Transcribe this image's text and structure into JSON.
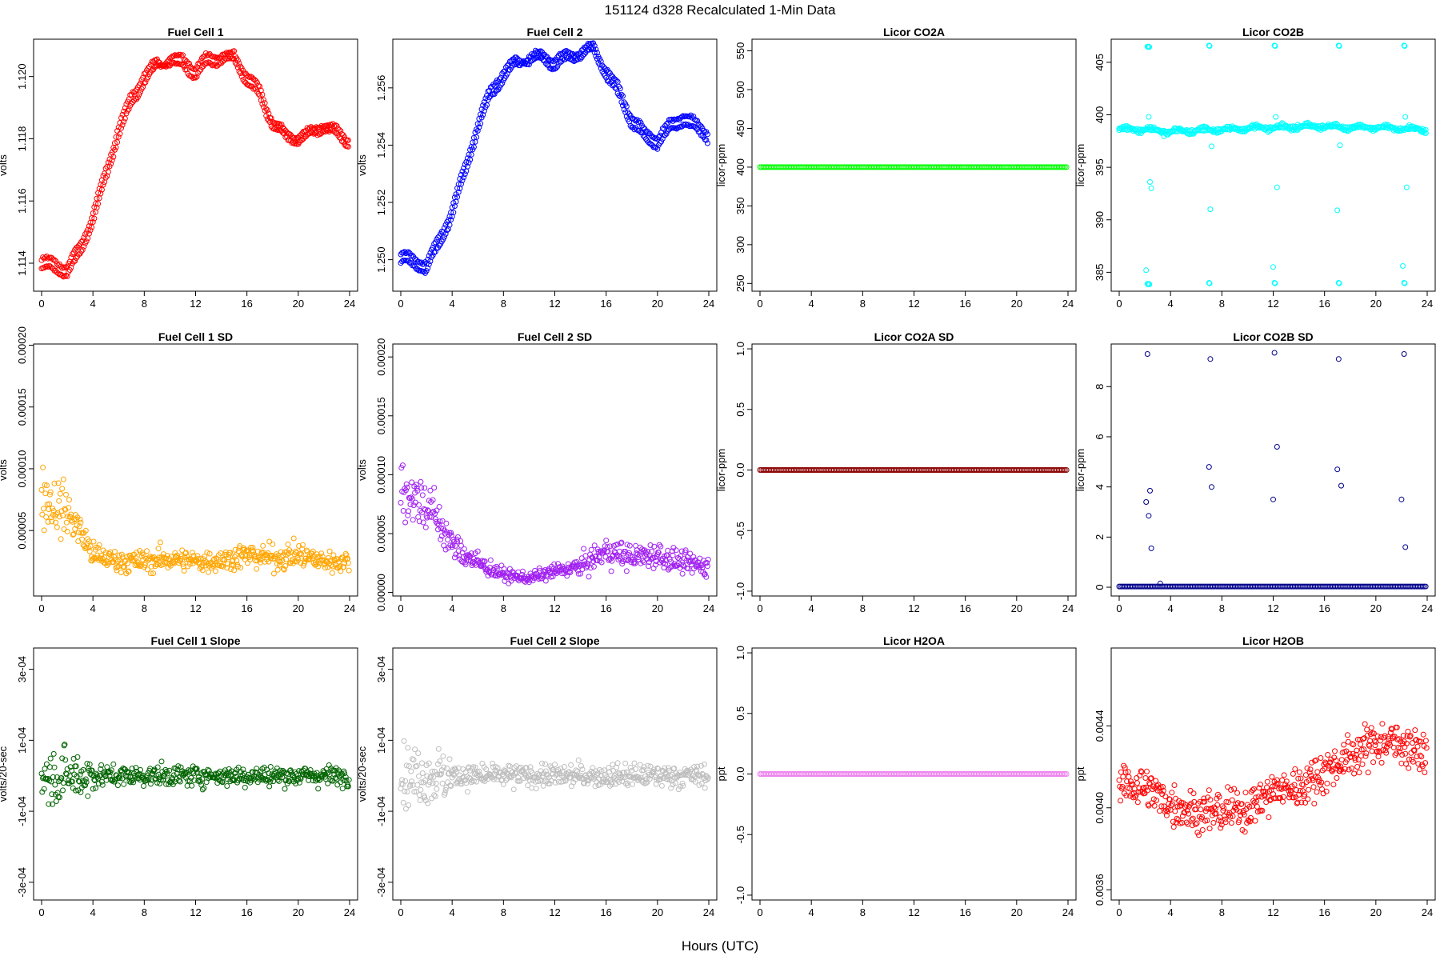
{
  "figure": {
    "title": "151124   d328   Recalculated 1-Min Data",
    "xlabel": "Hours (UTC)"
  },
  "chart_data": [
    {
      "type": "scatter",
      "title": "Fuel Cell 1",
      "ylabel": "volts",
      "color": "#ff0000",
      "xlim": [
        0,
        24
      ],
      "ylim": [
        1.1131,
        1.1212
      ],
      "xticks": [
        "0",
        "4",
        "8",
        "12",
        "16",
        "20",
        "24"
      ],
      "yticks": [
        1.114,
        1.116,
        1.118,
        1.12
      ],
      "ytick_labels": [
        "1.114",
        "1.116",
        "1.118",
        "1.120"
      ],
      "series": [
        {
          "x": [
            0,
            1,
            2,
            3,
            4,
            5,
            6,
            7,
            8,
            9,
            10,
            11,
            12,
            13,
            14,
            15,
            16,
            17,
            18,
            19,
            20,
            21,
            22,
            23,
            24
          ],
          "y": [
            1.1138,
            1.1138,
            1.1136,
            1.1143,
            1.1153,
            1.1167,
            1.1181,
            1.1191,
            1.1198,
            1.1203,
            1.1206,
            1.1206,
            1.1203,
            1.1207,
            1.1207,
            1.1207,
            1.1201,
            1.1196,
            1.1186,
            1.1182,
            1.1181,
            1.1183,
            1.1185,
            1.1183,
            1.118
          ]
        },
        {
          "x": [
            0,
            1,
            2,
            3,
            4,
            5,
            6,
            7,
            8,
            9,
            10,
            11,
            12,
            13,
            14,
            15,
            16,
            17,
            18,
            19,
            20,
            21,
            22,
            23,
            24
          ],
          "y": [
            1.1141,
            1.1141,
            1.1139,
            1.1146,
            1.1156,
            1.117,
            1.1184,
            1.1194,
            1.1201,
            1.1205,
            1.1204,
            1.1203,
            1.12,
            1.1204,
            1.1205,
            1.1205,
            1.1198,
            1.1193,
            1.1184,
            1.118,
            1.1179,
            1.1181,
            1.1183,
            1.1181,
            1.1178
          ]
        }
      ]
    },
    {
      "type": "scatter",
      "title": "Fuel Cell 2",
      "ylabel": "volts",
      "color": "#0000ff",
      "xlim": [
        0,
        24
      ],
      "ylim": [
        1.2489,
        1.2577
      ],
      "xticks": [
        "0",
        "4",
        "8",
        "12",
        "16",
        "20",
        "24"
      ],
      "yticks": [
        1.25,
        1.252,
        1.254,
        1.256
      ],
      "ytick_labels": [
        "1.250",
        "1.252",
        "1.254",
        "1.256"
      ],
      "series": [
        {
          "x": [
            0,
            1,
            2,
            3,
            4,
            5,
            6,
            7,
            8,
            9,
            10,
            11,
            12,
            13,
            14,
            15,
            16,
            17,
            18,
            19,
            20,
            21,
            22,
            23,
            24
          ],
          "y": [
            1.2499,
            1.2498,
            1.2496,
            1.2505,
            1.2515,
            1.253,
            1.2545,
            1.2557,
            1.2563,
            1.2568,
            1.2571,
            1.2572,
            1.257,
            1.2572,
            1.2573,
            1.2575,
            1.2567,
            1.256,
            1.255,
            1.2545,
            1.2543,
            1.2548,
            1.2551,
            1.2548,
            1.2545
          ]
        },
        {
          "x": [
            0,
            1,
            2,
            3,
            4,
            5,
            6,
            7,
            8,
            9,
            10,
            11,
            12,
            13,
            14,
            15,
            16,
            17,
            18,
            19,
            20,
            21,
            22,
            23,
            24
          ],
          "y": [
            1.2502,
            1.2501,
            1.2499,
            1.2508,
            1.2518,
            1.2533,
            1.2548,
            1.256,
            1.2566,
            1.257,
            1.2569,
            1.257,
            1.2567,
            1.257,
            1.2571,
            1.2573,
            1.2564,
            1.2557,
            1.2547,
            1.2542,
            1.254,
            1.2545,
            1.2548,
            1.2545,
            1.2542
          ]
        }
      ]
    },
    {
      "type": "scatter",
      "title": "Licor CO2A",
      "ylabel": "licor-ppm",
      "color": "#00ff00",
      "xlim": [
        0,
        24
      ],
      "ylim": [
        240,
        565
      ],
      "xticks": [
        "0",
        "4",
        "8",
        "12",
        "16",
        "20",
        "24"
      ],
      "yticks": [
        250,
        300,
        350,
        400,
        450,
        500,
        550
      ],
      "ytick_labels": [
        "250",
        "300",
        "350",
        "400",
        "450",
        "500",
        "550"
      ],
      "series": [
        {
          "x": [
            0,
            24
          ],
          "y": [
            400,
            400
          ]
        }
      ]
    },
    {
      "type": "scatter",
      "title": "Licor CO2B",
      "ylabel": "licor-ppm",
      "color": "#00ffff",
      "xlim": [
        0,
        24
      ],
      "ylim": [
        383.2,
        407.2
      ],
      "xticks": [
        "0",
        "4",
        "8",
        "12",
        "16",
        "20",
        "24"
      ],
      "yticks": [
        385,
        390,
        395,
        400,
        405
      ],
      "ytick_labels": [
        "385",
        "390",
        "395",
        "400",
        "405"
      ],
      "series": [
        {
          "x": [
            0,
            2,
            4,
            6,
            8,
            10,
            12,
            14,
            16,
            18,
            20,
            22,
            24
          ],
          "y": [
            398.6,
            398.6,
            398.4,
            398.5,
            398.6,
            398.7,
            398.8,
            398.9,
            398.9,
            398.8,
            398.8,
            398.7,
            398.6
          ]
        },
        {
          "x": [
            2.2,
            2.3,
            7.0,
            12.1,
            17.1,
            22.2
          ],
          "y": [
            406.5,
            406.5,
            406.6,
            406.6,
            406.6,
            406.6
          ]
        },
        {
          "x": [
            2.2,
            2.3,
            7.0,
            12.1,
            17.1,
            22.2
          ],
          "y": [
            383.9,
            383.9,
            384.0,
            384.0,
            384.0,
            384.0
          ]
        },
        {
          "x": [
            2.4,
            2.5,
            12.3,
            22.4
          ],
          "y": [
            393.6,
            393.0,
            393.1,
            393.1
          ]
        },
        {
          "x": [
            2.3,
            7.2,
            12.2,
            17.2,
            22.3,
            2.1,
            7.1,
            12.0,
            17.0,
            22.1
          ],
          "y": [
            399.8,
            397.0,
            399.8,
            397.1,
            399.8,
            385.2,
            391.0,
            385.5,
            390.9,
            385.6
          ]
        }
      ]
    },
    {
      "type": "scatter",
      "title": "Fuel Cell 1 SD",
      "ylabel": "volts",
      "color": "#ffa500",
      "xlim": [
        0,
        24
      ],
      "ylim": [
        -3e-06,
        0.000201
      ],
      "xticks": [
        "0",
        "4",
        "8",
        "12",
        "16",
        "20",
        "24"
      ],
      "yticks": [
        5e-05,
        0.0001,
        0.00015,
        0.0002
      ],
      "ytick_labels": [
        "0.00005",
        "0.00010",
        "0.00015",
        "0.00020"
      ],
      "series": [
        {
          "x": [
            0,
            1,
            2,
            3,
            4,
            6,
            8,
            10,
            12,
            14,
            16,
            18,
            20,
            22,
            24
          ],
          "y": [
            8e-05,
            7e-05,
            6.5e-05,
            5e-05,
            3e-05,
            2.5e-05,
            2.5e-05,
            2.7e-05,
            2.5e-05,
            2.6e-05,
            3e-05,
            2.8e-05,
            3e-05,
            2.5e-05,
            2.5e-05
          ]
        }
      ]
    },
    {
      "type": "scatter",
      "title": "Fuel Cell 2 SD",
      "ylabel": "volts",
      "color": "#a020f0",
      "xlim": [
        0,
        24
      ],
      "ylim": [
        -3e-06,
        0.000211
      ],
      "xticks": [
        "0",
        "4",
        "8",
        "12",
        "16",
        "20",
        "24"
      ],
      "yticks": [
        0,
        5e-05,
        0.0001,
        0.00015,
        0.0002
      ],
      "ytick_labels": [
        "0.00000",
        "0.00005",
        "0.00010",
        "0.00015",
        "0.00020"
      ],
      "series": [
        {
          "x": [
            0,
            1,
            2,
            3,
            4,
            6,
            8,
            10,
            12,
            14,
            16,
            18,
            20,
            22,
            24
          ],
          "y": [
            9e-05,
            8e-05,
            7.5e-05,
            6e-05,
            4e-05,
            2.5e-05,
            1.5e-05,
            1.2e-05,
            1.8e-05,
            2.2e-05,
            3.5e-05,
            3e-05,
            3.2e-05,
            2.5e-05,
            2.2e-05
          ]
        }
      ]
    },
    {
      "type": "scatter",
      "title": "Licor CO2A SD",
      "ylabel": "licor-ppm",
      "color": "#8b0000",
      "xlim": [
        0,
        24
      ],
      "ylim": [
        -1.04,
        1.04
      ],
      "xticks": [
        "0",
        "4",
        "8",
        "12",
        "16",
        "20",
        "24"
      ],
      "yticks": [
        -1,
        -0.5,
        0,
        0.5,
        1
      ],
      "ytick_labels": [
        "-1.0",
        "-0.5",
        "0.0",
        "0.5",
        "1.0"
      ],
      "series": [
        {
          "x": [
            0,
            24
          ],
          "y": [
            0,
            0
          ]
        }
      ]
    },
    {
      "type": "scatter",
      "title": "Licor CO2B SD",
      "ylabel": "licor-ppm",
      "color": "#00008b",
      "xlim": [
        0,
        24
      ],
      "ylim": [
        -0.35,
        9.7
      ],
      "xticks": [
        "0",
        "4",
        "8",
        "12",
        "16",
        "20",
        "24"
      ],
      "yticks": [
        0,
        2,
        4,
        6,
        8
      ],
      "ytick_labels": [
        "0",
        "2",
        "4",
        "6",
        "8"
      ],
      "series": [
        {
          "x": [
            0,
            24
          ],
          "y": [
            0.03,
            0.03
          ]
        },
        {
          "x": [
            2.1,
            2.2,
            2.3,
            2.4,
            2.5,
            3.2,
            7.0,
            7.1,
            7.2,
            12.0,
            12.1,
            12.3,
            17.0,
            17.1,
            17.3,
            22.0,
            22.2,
            22.3
          ],
          "y": [
            3.4,
            9.3,
            2.85,
            3.85,
            1.55,
            0.15,
            4.8,
            9.1,
            4.0,
            3.5,
            9.35,
            5.6,
            4.7,
            9.1,
            4.05,
            3.5,
            9.3,
            1.6
          ]
        }
      ]
    },
    {
      "type": "scatter",
      "title": "Fuel Cell 1 Slope",
      "ylabel": "volts/20-sec",
      "color": "#006400",
      "xlim": [
        0,
        24
      ],
      "ylim": [
        -0.00035,
        0.00036
      ],
      "xticks": [
        "0",
        "4",
        "8",
        "12",
        "16",
        "20",
        "24"
      ],
      "yticks": [
        -0.0003,
        -0.0001,
        0.0001,
        0.0003
      ],
      "ytick_labels": [
        "-3e-04",
        "-1e-04",
        "1e-04",
        "3e-04"
      ],
      "series": [
        {
          "x": [
            0,
            2,
            4,
            6,
            8,
            10,
            12,
            14,
            16,
            18,
            20,
            22,
            24
          ],
          "y": [
            0,
            0,
            0,
            0,
            0,
            0,
            0,
            0,
            0,
            0,
            0,
            0,
            0
          ]
        }
      ]
    },
    {
      "type": "scatter",
      "title": "Fuel Cell 2 Slope",
      "ylabel": "volts/20-sec",
      "color": "#bebebe",
      "xlim": [
        0,
        24
      ],
      "ylim": [
        -0.00035,
        0.00036
      ],
      "xticks": [
        "0",
        "4",
        "8",
        "12",
        "16",
        "20",
        "24"
      ],
      "yticks": [
        -0.0003,
        -0.0001,
        0.0001,
        0.0003
      ],
      "ytick_labels": [
        "-3e-04",
        "-1e-04",
        "1e-04",
        "3e-04"
      ],
      "series": [
        {
          "x": [
            0,
            2,
            4,
            6,
            8,
            10,
            12,
            14,
            16,
            18,
            20,
            22,
            24
          ],
          "y": [
            0,
            0,
            0,
            0,
            0,
            0,
            0,
            0,
            0,
            0,
            0,
            0,
            0
          ]
        }
      ]
    },
    {
      "type": "scatter",
      "title": "Licor H2OA",
      "ylabel": "ppt",
      "color": "#ee82ee",
      "xlim": [
        0,
        24
      ],
      "ylim": [
        -1.04,
        1.04
      ],
      "xticks": [
        "0",
        "4",
        "8",
        "12",
        "16",
        "20",
        "24"
      ],
      "yticks": [
        -1,
        -0.5,
        0,
        0.5,
        1
      ],
      "ytick_labels": [
        "-1.0",
        "-0.5",
        "0.0",
        "0.5",
        "1.0"
      ],
      "series": [
        {
          "x": [
            0,
            24
          ],
          "y": [
            0,
            0
          ]
        }
      ]
    },
    {
      "type": "scatter",
      "title": "Licor H2OB",
      "ylabel": "ppt",
      "color": "#ff0000",
      "xlim": [
        0,
        24
      ],
      "ylim": [
        0.00355,
        0.00478
      ],
      "xticks": [
        "0",
        "4",
        "8",
        "12",
        "16",
        "20",
        "24"
      ],
      "yticks": [
        0.0036,
        0.004,
        0.0044
      ],
      "ytick_labels": [
        "0.0036",
        "0.0040",
        "0.0044"
      ],
      "series": [
        {
          "x": [
            0,
            2,
            4,
            6,
            8,
            10,
            12,
            14,
            16,
            18,
            20,
            22,
            24
          ],
          "y": [
            0.00412,
            0.0041,
            0.00402,
            0.00398,
            0.00398,
            0.004,
            0.00408,
            0.0041,
            0.00418,
            0.00425,
            0.00432,
            0.00432,
            0.00425
          ]
        }
      ]
    }
  ]
}
